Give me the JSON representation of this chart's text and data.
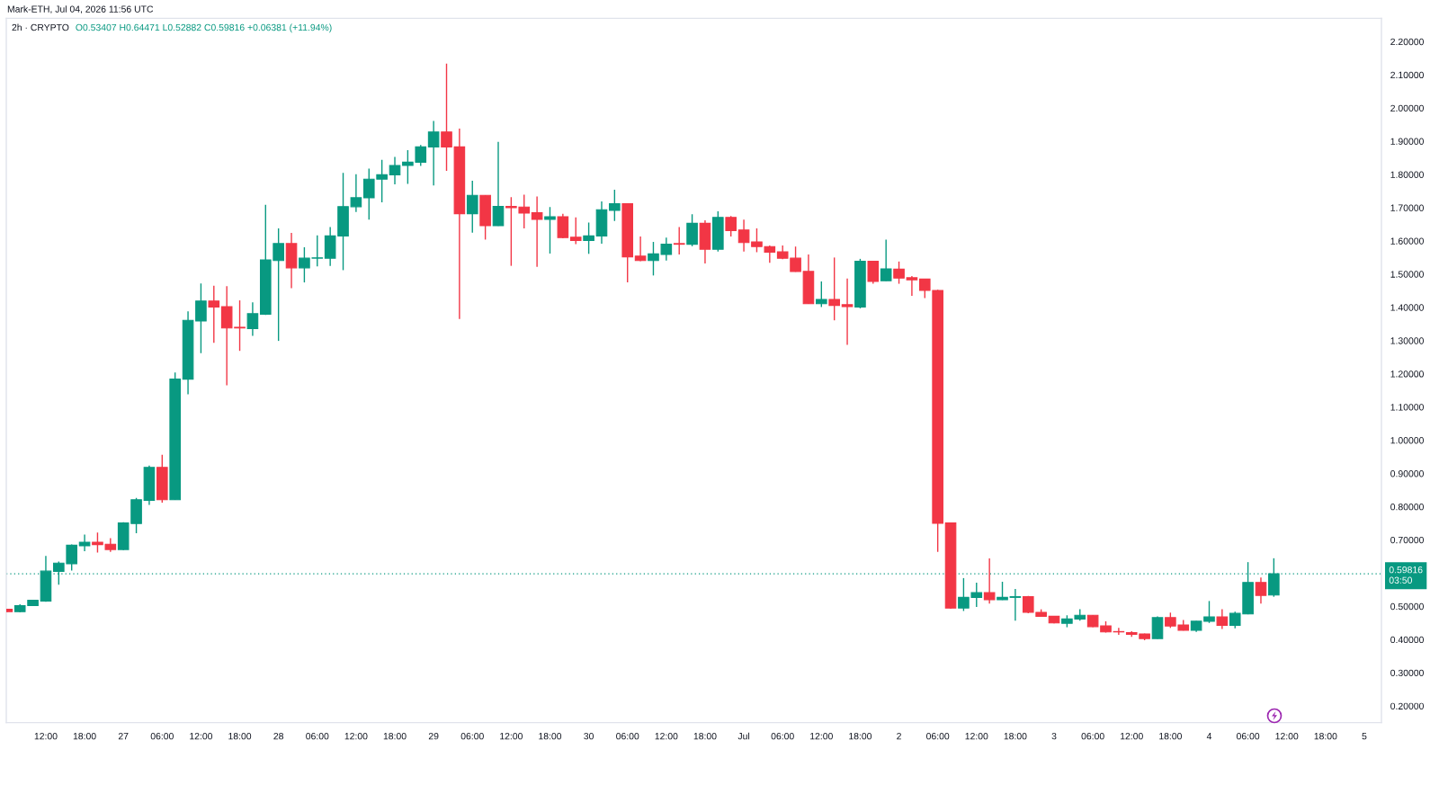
{
  "chart_data": {
    "type": "candlestick",
    "title": "2h · CRYPTO",
    "subtitle": "O0.53407 H0.64471 L0.52882 C0.59816 +0.06381 (+11.94%)",
    "annotations": [
      "Mark-ETH, Jul 04, 2026 11:56 UTC"
    ],
    "x": [
      "2026-06-26T06:00",
      "2026-06-26T08:00",
      "2026-06-26T10:00",
      "2026-06-26T12:00",
      "2026-06-26T14:00",
      "2026-06-26T16:00",
      "2026-06-26T18:00",
      "2026-06-26T20:00",
      "2026-06-26T22:00",
      "2026-06-27T00:00",
      "2026-06-27T02:00",
      "2026-06-27T04:00",
      "2026-06-27T06:00",
      "2026-06-27T08:00",
      "2026-06-27T10:00",
      "2026-06-27T12:00",
      "2026-06-27T14:00",
      "2026-06-27T16:00",
      "2026-06-27T18:00",
      "2026-06-27T20:00",
      "2026-06-27T22:00",
      "2026-06-28T00:00",
      "2026-06-28T02:00",
      "2026-06-28T04:00",
      "2026-06-28T06:00",
      "2026-06-28T08:00",
      "2026-06-28T10:00",
      "2026-06-28T12:00",
      "2026-06-28T14:00",
      "2026-06-28T16:00",
      "2026-06-28T18:00",
      "2026-06-28T20:00",
      "2026-06-28T22:00",
      "2026-06-29T00:00",
      "2026-06-29T02:00",
      "2026-06-29T04:00",
      "2026-06-29T06:00",
      "2026-06-29T08:00",
      "2026-06-29T10:00",
      "2026-06-29T12:00",
      "2026-06-29T14:00",
      "2026-06-29T16:00",
      "2026-06-29T18:00",
      "2026-06-29T20:00",
      "2026-06-29T22:00",
      "2026-06-30T00:00",
      "2026-06-30T02:00",
      "2026-06-30T04:00",
      "2026-06-30T06:00",
      "2026-06-30T08:00",
      "2026-06-30T10:00",
      "2026-06-30T12:00",
      "2026-06-30T14:00",
      "2026-06-30T16:00",
      "2026-06-30T18:00",
      "2026-06-30T20:00",
      "2026-06-30T22:00",
      "2026-07-01T00:00",
      "2026-07-01T02:00",
      "2026-07-01T04:00",
      "2026-07-01T06:00",
      "2026-07-01T08:00",
      "2026-07-01T10:00",
      "2026-07-01T12:00",
      "2026-07-01T14:00",
      "2026-07-01T16:00",
      "2026-07-01T18:00",
      "2026-07-01T20:00",
      "2026-07-01T22:00",
      "2026-07-02T00:00",
      "2026-07-02T02:00",
      "2026-07-02T04:00",
      "2026-07-02T06:00",
      "2026-07-02T08:00",
      "2026-07-02T10:00",
      "2026-07-02T12:00",
      "2026-07-02T14:00",
      "2026-07-02T16:00",
      "2026-07-02T18:00",
      "2026-07-02T20:00",
      "2026-07-02T22:00",
      "2026-07-03T00:00",
      "2026-07-03T02:00",
      "2026-07-03T04:00",
      "2026-07-03T06:00",
      "2026-07-03T08:00",
      "2026-07-03T10:00",
      "2026-07-03T12:00",
      "2026-07-03T14:00",
      "2026-07-03T16:00",
      "2026-07-03T18:00",
      "2026-07-03T20:00",
      "2026-07-03T22:00",
      "2026-07-04T00:00",
      "2026-07-04T02:00",
      "2026-07-04T04:00",
      "2026-07-04T06:00",
      "2026-07-04T08:00",
      "2026-07-04T10:00"
    ],
    "ohlc": [
      [
        0.491,
        0.492,
        0.483,
        0.484
      ],
      [
        0.484,
        0.506,
        0.482,
        0.502
      ],
      [
        0.502,
        0.52,
        0.501,
        0.518
      ],
      [
        0.516,
        0.652,
        0.514,
        0.606
      ],
      [
        0.605,
        0.635,
        0.565,
        0.63
      ],
      [
        0.628,
        0.686,
        0.608,
        0.684
      ],
      [
        0.682,
        0.716,
        0.666,
        0.693
      ],
      [
        0.693,
        0.722,
        0.662,
        0.686
      ],
      [
        0.687,
        0.705,
        0.664,
        0.671
      ],
      [
        0.671,
        0.753,
        0.669,
        0.751
      ],
      [
        0.749,
        0.826,
        0.72,
        0.821
      ],
      [
        0.819,
        0.924,
        0.805,
        0.918
      ],
      [
        0.918,
        0.956,
        0.812,
        0.821
      ],
      [
        0.821,
        1.204,
        0.82,
        1.184
      ],
      [
        1.184,
        1.388,
        1.138,
        1.361
      ],
      [
        1.359,
        1.472,
        1.262,
        1.419
      ],
      [
        1.419,
        1.465,
        1.293,
        1.401
      ],
      [
        1.402,
        1.464,
        1.165,
        1.338
      ],
      [
        1.34,
        1.421,
        1.269,
        1.338
      ],
      [
        1.336,
        1.415,
        1.314,
        1.381
      ],
      [
        1.379,
        1.709,
        1.377,
        1.543
      ],
      [
        1.541,
        1.638,
        1.299,
        1.592
      ],
      [
        1.592,
        1.624,
        1.458,
        1.519
      ],
      [
        1.519,
        1.581,
        1.475,
        1.548
      ],
      [
        1.548,
        1.617,
        1.523,
        1.549
      ],
      [
        1.548,
        1.642,
        1.525,
        1.615
      ],
      [
        1.615,
        1.805,
        1.512,
        1.703
      ],
      [
        1.703,
        1.801,
        1.687,
        1.73
      ],
      [
        1.73,
        1.818,
        1.664,
        1.786
      ],
      [
        1.786,
        1.844,
        1.716,
        1.799
      ],
      [
        1.799,
        1.853,
        1.77,
        1.827
      ],
      [
        1.827,
        1.873,
        1.772,
        1.837
      ],
      [
        1.837,
        1.889,
        1.826,
        1.883
      ],
      [
        1.883,
        1.961,
        1.767,
        1.928
      ],
      [
        1.928,
        2.134,
        1.811,
        1.883
      ],
      [
        1.883,
        1.938,
        1.365,
        1.682
      ],
      [
        1.682,
        1.781,
        1.625,
        1.737
      ],
      [
        1.737,
        1.738,
        1.604,
        1.646
      ],
      [
        1.646,
        1.898,
        1.645,
        1.704
      ],
      [
        1.704,
        1.732,
        1.525,
        1.7
      ],
      [
        1.702,
        1.739,
        1.638,
        1.684
      ],
      [
        1.685,
        1.734,
        1.522,
        1.665
      ],
      [
        1.665,
        1.702,
        1.562,
        1.673
      ],
      [
        1.673,
        1.682,
        1.608,
        1.61
      ],
      [
        1.611,
        1.671,
        1.59,
        1.601
      ],
      [
        1.601,
        1.655,
        1.561,
        1.615
      ],
      [
        1.615,
        1.719,
        1.592,
        1.694
      ],
      [
        1.692,
        1.754,
        1.66,
        1.712
      ],
      [
        1.712,
        1.713,
        1.475,
        1.552
      ],
      [
        1.554,
        1.613,
        1.539,
        1.541
      ],
      [
        1.541,
        1.597,
        1.496,
        1.561
      ],
      [
        1.559,
        1.61,
        1.541,
        1.59
      ],
      [
        1.592,
        1.642,
        1.559,
        1.59
      ],
      [
        1.59,
        1.68,
        1.584,
        1.653
      ],
      [
        1.653,
        1.662,
        1.532,
        1.575
      ],
      [
        1.575,
        1.689,
        1.568,
        1.671
      ],
      [
        1.671,
        1.675,
        1.613,
        1.631
      ],
      [
        1.633,
        1.664,
        1.568,
        1.595
      ],
      [
        1.597,
        1.638,
        1.566,
        1.583
      ],
      [
        1.583,
        1.586,
        1.534,
        1.566
      ],
      [
        1.567,
        1.586,
        1.545,
        1.548
      ],
      [
        1.548,
        1.583,
        1.507,
        1.508
      ],
      [
        1.508,
        1.559,
        1.41,
        1.411
      ],
      [
        1.411,
        1.478,
        1.401,
        1.424
      ],
      [
        1.424,
        1.55,
        1.361,
        1.406
      ],
      [
        1.408,
        1.487,
        1.287,
        1.402
      ],
      [
        1.401,
        1.546,
        1.397,
        1.539
      ],
      [
        1.539,
        1.54,
        1.471,
        1.478
      ],
      [
        1.48,
        1.604,
        1.479,
        1.516
      ],
      [
        1.515,
        1.538,
        1.471,
        1.488
      ],
      [
        1.489,
        1.494,
        1.435,
        1.483
      ],
      [
        1.485,
        1.486,
        1.428,
        1.451
      ],
      [
        1.451,
        1.453,
        0.664,
        0.75
      ],
      [
        0.751,
        0.752,
        0.493,
        0.495
      ],
      [
        0.495,
        0.585,
        0.486,
        0.527
      ],
      [
        0.527,
        0.571,
        0.498,
        0.541
      ],
      [
        0.541,
        0.644,
        0.508,
        0.52
      ],
      [
        0.52,
        0.574,
        0.519,
        0.527
      ],
      [
        0.527,
        0.552,
        0.457,
        0.529
      ],
      [
        0.529,
        0.531,
        0.479,
        0.482
      ],
      [
        0.482,
        0.491,
        0.469,
        0.47
      ],
      [
        0.47,
        0.471,
        0.449,
        0.45
      ],
      [
        0.449,
        0.473,
        0.437,
        0.462
      ],
      [
        0.462,
        0.491,
        0.457,
        0.473
      ],
      [
        0.473,
        0.474,
        0.437,
        0.439
      ],
      [
        0.441,
        0.455,
        0.421,
        0.423
      ],
      [
        0.424,
        0.435,
        0.414,
        0.423
      ],
      [
        0.421,
        0.425,
        0.408,
        0.416
      ],
      [
        0.417,
        0.418,
        0.398,
        0.403
      ],
      [
        0.403,
        0.47,
        0.402,
        0.466
      ],
      [
        0.466,
        0.481,
        0.435,
        0.441
      ],
      [
        0.444,
        0.459,
        0.427,
        0.428
      ],
      [
        0.428,
        0.456,
        0.423,
        0.455
      ],
      [
        0.455,
        0.516,
        0.45,
        0.468
      ],
      [
        0.468,
        0.491,
        0.432,
        0.443
      ],
      [
        0.443,
        0.484,
        0.434,
        0.479
      ],
      [
        0.477,
        0.633,
        0.476,
        0.572
      ],
      [
        0.572,
        0.587,
        0.508,
        0.533
      ],
      [
        0.53407,
        0.64471,
        0.52882,
        0.59816
      ]
    ],
    "colors": [
      "#f23645",
      "#089981",
      "#089981",
      "#089981",
      "#089981",
      "#089981",
      "#089981",
      "#f23645",
      "#f23645",
      "#089981",
      "#089981",
      "#089981",
      "#f23645",
      "#089981",
      "#089981",
      "#089981",
      "#f23645",
      "#f23645",
      "#f23645",
      "#089981",
      "#089981",
      "#089981",
      "#f23645",
      "#089981",
      "#089981",
      "#089981",
      "#089981",
      "#089981",
      "#089981",
      "#089981",
      "#089981",
      "#089981",
      "#089981",
      "#089981",
      "#f23645",
      "#f23645",
      "#089981",
      "#f23645",
      "#089981",
      "#f23645",
      "#f23645",
      "#f23645",
      "#089981",
      "#f23645",
      "#f23645",
      "#089981",
      "#089981",
      "#089981",
      "#f23645",
      "#f23645",
      "#089981",
      "#089981",
      "#f23645",
      "#089981",
      "#f23645",
      "#089981",
      "#f23645",
      "#f23645",
      "#f23645",
      "#f23645",
      "#f23645",
      "#f23645",
      "#f23645",
      "#089981",
      "#f23645",
      "#f23645",
      "#089981",
      "#f23645",
      "#089981",
      "#f23645",
      "#f23645",
      "#f23645",
      "#f23645",
      "#f23645",
      "#089981",
      "#089981",
      "#f23645",
      "#089981",
      "#089981",
      "#f23645",
      "#f23645",
      "#f23645",
      "#089981",
      "#089981",
      "#f23645",
      "#f23645",
      "#f23645",
      "#f23645",
      "#f23645",
      "#089981",
      "#f23645",
      "#f23645",
      "#089981",
      "#089981",
      "#f23645",
      "#089981",
      "#089981",
      "#f23645",
      "#089981"
    ],
    "xlim": [
      "2026-06-26T05:53",
      "2026-07-05T02:39"
    ],
    "xticks": [
      {
        "value": "2026-06-26T12:00",
        "label": "12:00"
      },
      {
        "value": "2026-06-26T18:00",
        "label": "18:00"
      },
      {
        "value": "2026-06-27T00:00",
        "label": "27"
      },
      {
        "value": "2026-06-27T06:00",
        "label": "06:00"
      },
      {
        "value": "2026-06-27T12:00",
        "label": "12:00"
      },
      {
        "value": "2026-06-27T18:00",
        "label": "18:00"
      },
      {
        "value": "2026-06-28T00:00",
        "label": "28"
      },
      {
        "value": "2026-06-28T06:00",
        "label": "06:00"
      },
      {
        "value": "2026-06-28T12:00",
        "label": "12:00"
      },
      {
        "value": "2026-06-28T18:00",
        "label": "18:00"
      },
      {
        "value": "2026-06-29T00:00",
        "label": "29"
      },
      {
        "value": "2026-06-29T06:00",
        "label": "06:00"
      },
      {
        "value": "2026-06-29T12:00",
        "label": "12:00"
      },
      {
        "value": "2026-06-29T18:00",
        "label": "18:00"
      },
      {
        "value": "2026-06-30T00:00",
        "label": "30"
      },
      {
        "value": "2026-06-30T06:00",
        "label": "06:00"
      },
      {
        "value": "2026-06-30T12:00",
        "label": "12:00"
      },
      {
        "value": "2026-06-30T18:00",
        "label": "18:00"
      },
      {
        "value": "2026-07-01T00:00",
        "label": "Jul"
      },
      {
        "value": "2026-07-01T06:00",
        "label": "06:00"
      },
      {
        "value": "2026-07-01T12:00",
        "label": "12:00"
      },
      {
        "value": "2026-07-01T18:00",
        "label": "18:00"
      },
      {
        "value": "2026-07-02T00:00",
        "label": "2"
      },
      {
        "value": "2026-07-02T06:00",
        "label": "06:00"
      },
      {
        "value": "2026-07-02T12:00",
        "label": "12:00"
      },
      {
        "value": "2026-07-02T18:00",
        "label": "18:00"
      },
      {
        "value": "2026-07-03T00:00",
        "label": "3"
      },
      {
        "value": "2026-07-03T06:00",
        "label": "06:00"
      },
      {
        "value": "2026-07-03T12:00",
        "label": "12:00"
      },
      {
        "value": "2026-07-03T18:00",
        "label": "18:00"
      },
      {
        "value": "2026-07-04T00:00",
        "label": "4"
      },
      {
        "value": "2026-07-04T06:00",
        "label": "06:00"
      },
      {
        "value": "2026-07-04T12:00",
        "label": "12:00"
      },
      {
        "value": "2026-07-04T18:00",
        "label": "18:00"
      },
      {
        "value": "2026-07-05T00:00",
        "label": "5"
      }
    ],
    "ylim": [
      0.15,
      2.27
    ],
    "yticks": [
      {
        "value": 0.2,
        "label": "0.20000"
      },
      {
        "value": 0.3,
        "label": "0.30000"
      },
      {
        "value": 0.4,
        "label": "0.40000"
      },
      {
        "value": 0.5,
        "label": "0.50000"
      },
      {
        "value": 0.7,
        "label": "0.70000"
      },
      {
        "value": 0.8,
        "label": "0.80000"
      },
      {
        "value": 0.9,
        "label": "0.90000"
      },
      {
        "value": 1.0,
        "label": "1.00000"
      },
      {
        "value": 1.1,
        "label": "1.10000"
      },
      {
        "value": 1.2,
        "label": "1.20000"
      },
      {
        "value": 1.3,
        "label": "1.30000"
      },
      {
        "value": 1.4,
        "label": "1.40000"
      },
      {
        "value": 1.5,
        "label": "1.50000"
      },
      {
        "value": 1.6,
        "label": "1.60000"
      },
      {
        "value": 1.7,
        "label": "1.70000"
      },
      {
        "value": 1.8,
        "label": "1.80000"
      },
      {
        "value": 1.9,
        "label": "1.90000"
      },
      {
        "value": 2.0,
        "label": "2.00000"
      },
      {
        "value": 2.1,
        "label": "2.10000"
      },
      {
        "value": 2.2,
        "label": "2.20000"
      }
    ],
    "ref_lines": [
      {
        "axis": "y",
        "value": 0.59816,
        "label": "0.59816\n03:50",
        "color": "#089981",
        "line_style": "dotted"
      }
    ]
  }
}
